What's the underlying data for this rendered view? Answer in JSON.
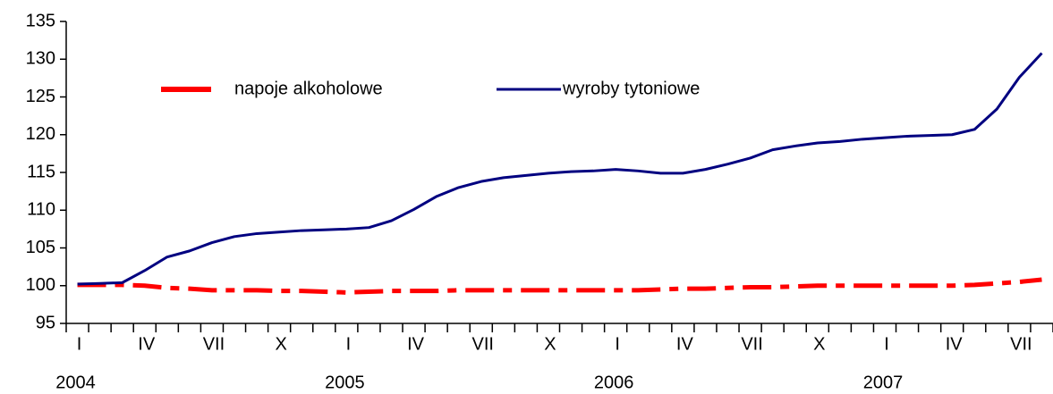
{
  "chart_data": {
    "type": "line",
    "categories": [
      "I",
      null,
      null,
      "IV",
      null,
      null,
      "VII",
      null,
      null,
      "X",
      null,
      null,
      "I",
      null,
      null,
      "IV",
      null,
      null,
      "VII",
      null,
      null,
      "X",
      null,
      null,
      "I",
      null,
      null,
      "IV",
      null,
      null,
      "VII",
      null,
      null,
      "X",
      null,
      null,
      "I",
      null,
      null,
      "IV",
      null,
      null,
      "VII",
      null
    ],
    "years": [
      "2004",
      "2005",
      "2006",
      "2007"
    ],
    "series": [
      {
        "name": "napoje alkoholowe",
        "color": "#ff0000",
        "dash": true,
        "values": [
          100.1,
          100.1,
          100.1,
          100,
          99.7,
          99.6,
          99.4,
          99.4,
          99.4,
          99.3,
          99.3,
          99.2,
          99.1,
          99.2,
          99.3,
          99.3,
          99.3,
          99.4,
          99.4,
          99.4,
          99.4,
          99.4,
          99.4,
          99.4,
          99.4,
          99.4,
          99.5,
          99.6,
          99.6,
          99.7,
          99.8,
          99.8,
          99.9,
          100,
          100,
          100,
          100,
          100,
          100,
          100,
          100.1,
          100.3,
          100.5,
          100.8
        ]
      },
      {
        "name": "wyroby tytoniowe",
        "color": "#000080",
        "dash": false,
        "values": [
          100.2,
          100.3,
          100.4,
          102,
          103.8,
          104.6,
          105.7,
          106.5,
          106.9,
          107.1,
          107.3,
          107.4,
          107.5,
          107.7,
          108.6,
          110.1,
          111.8,
          113,
          113.8,
          114.3,
          114.6,
          114.9,
          115.1,
          115.2,
          115.4,
          115.2,
          114.9,
          114.9,
          115.4,
          116.1,
          116.9,
          118,
          118.5,
          118.9,
          119.1,
          119.4,
          119.6,
          119.8,
          119.9,
          120,
          120.7,
          123.4,
          127.6,
          130.8
        ]
      }
    ],
    "ylim": [
      95,
      135
    ],
    "yticks": [
      95,
      100,
      105,
      110,
      115,
      120,
      125,
      130,
      135
    ],
    "grid": false
  }
}
